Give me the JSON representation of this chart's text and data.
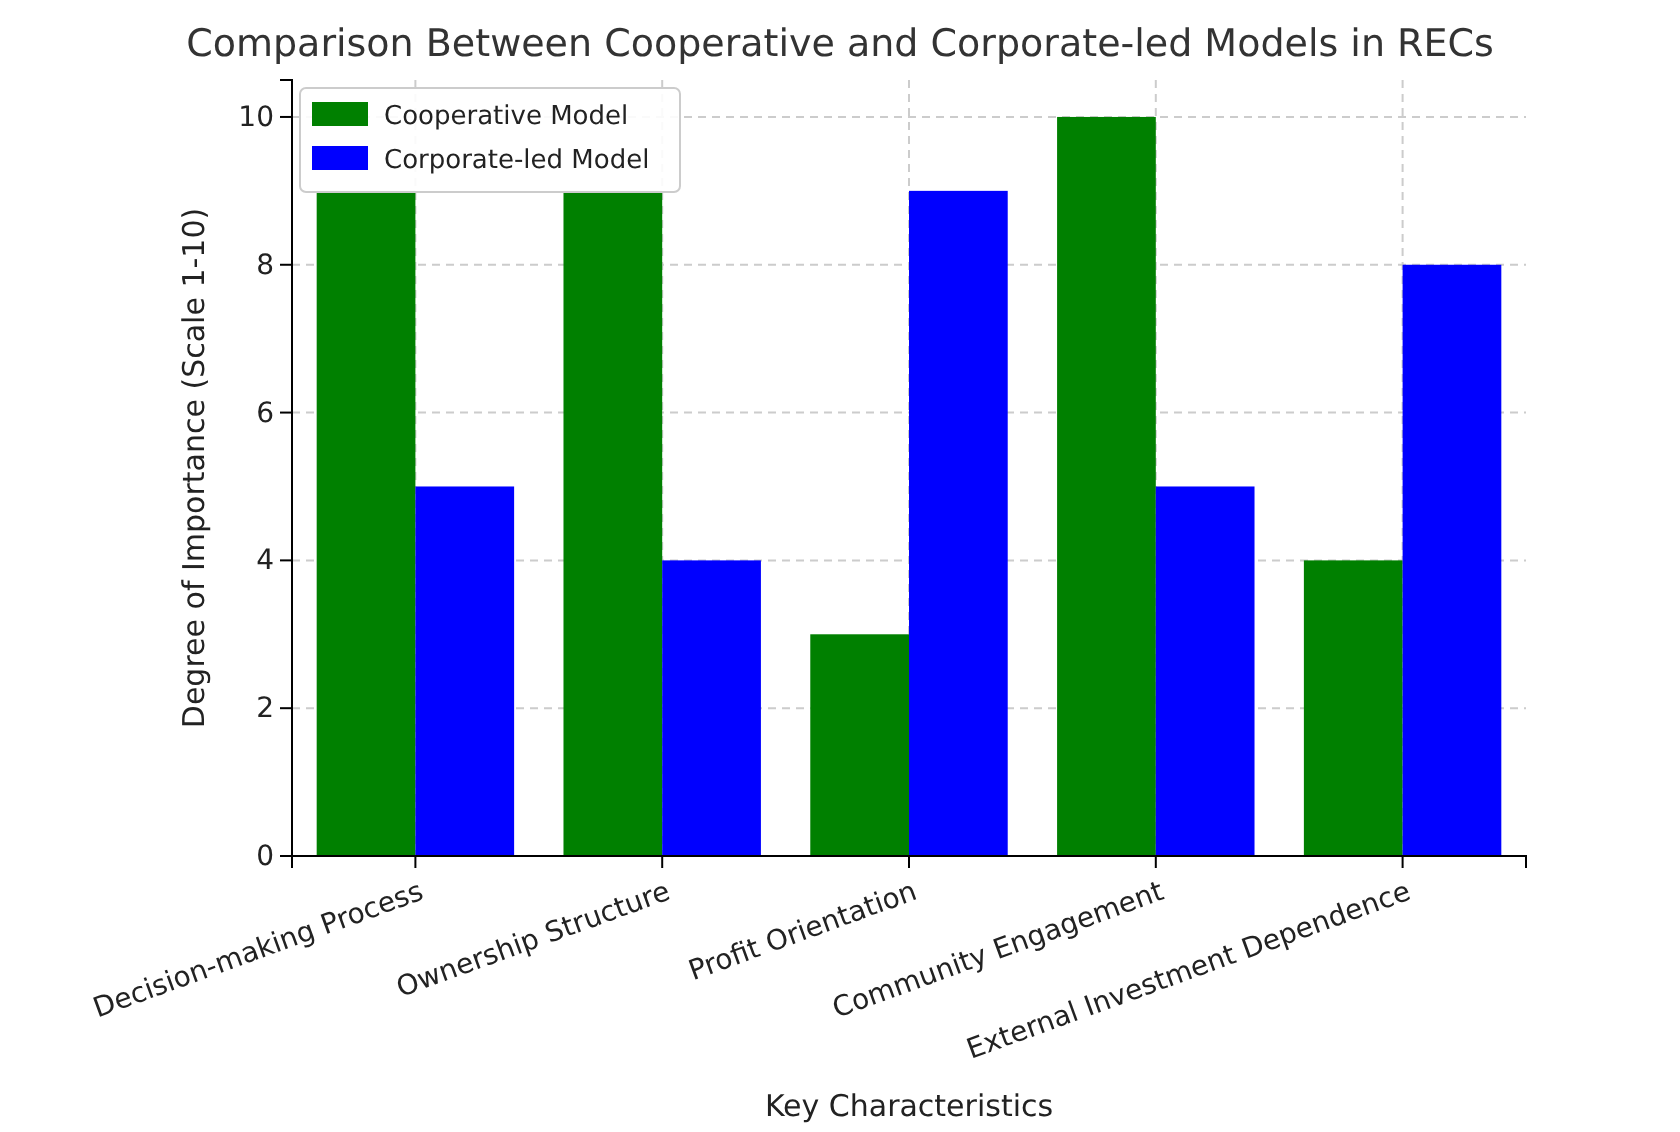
{
  "chart_data": {
    "type": "bar",
    "title": "Comparison Between Cooperative and Corporate-led Models in RECs",
    "xlabel": "Key Characteristics",
    "ylabel": "Degree of Importance (Scale 1-10)",
    "categories": [
      "Decision-making Process",
      "Ownership Structure",
      "Profit Orientation",
      "Community Engagement",
      "External Investment Dependence"
    ],
    "series": [
      {
        "name": "Cooperative Model",
        "color": "#008000",
        "values": [
          9,
          9,
          3,
          10,
          4
        ]
      },
      {
        "name": "Corporate-led Model",
        "color": "#0000ff",
        "values": [
          5,
          4,
          9,
          5,
          8
        ]
      }
    ],
    "ylim": [
      0,
      10.5
    ],
    "yticks": [
      0,
      2,
      4,
      6,
      8,
      10
    ],
    "grid": true,
    "legend": "top left"
  }
}
